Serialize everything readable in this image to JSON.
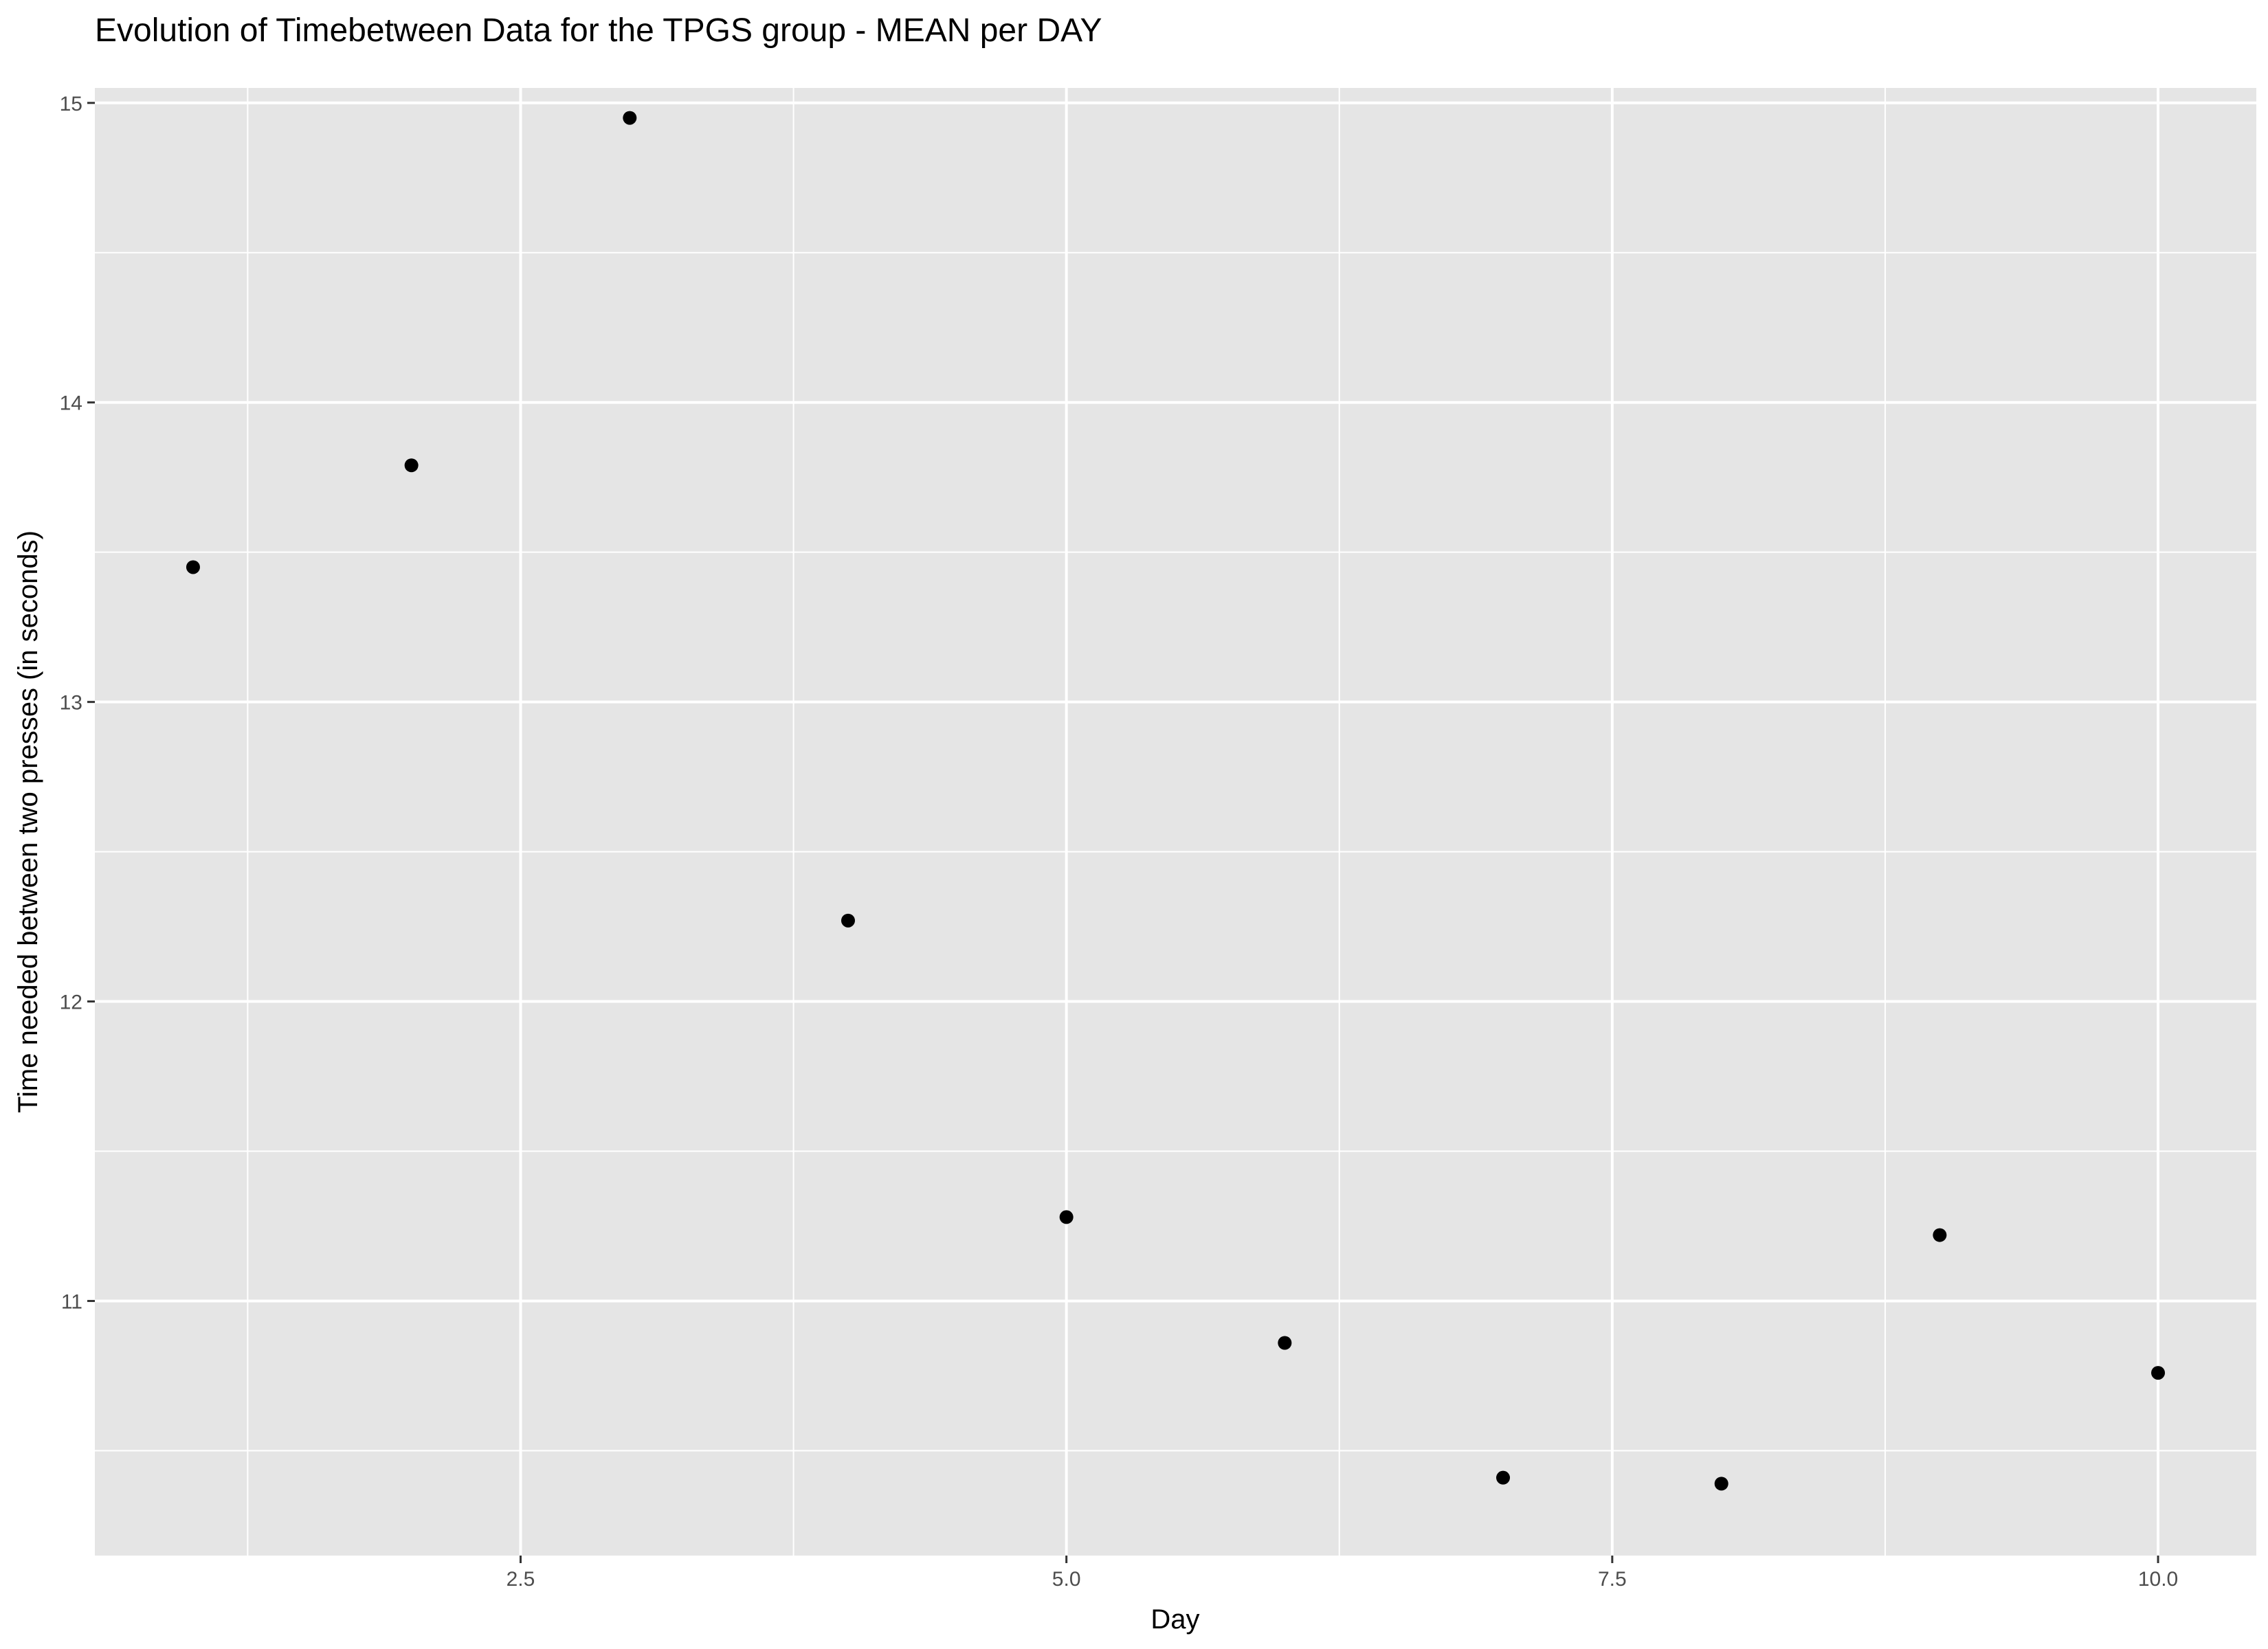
{
  "chart_data": {
    "type": "scatter",
    "title": "Evolution of Timebetween Data for the TPGS group - MEAN per DAY",
    "xlabel": "Day",
    "ylabel": "Time needed between two presses (in seconds)",
    "xlim": [
      0.55,
      10.45
    ],
    "ylim": [
      10.15,
      15.05
    ],
    "x_ticks": [
      2.5,
      5.0,
      7.5,
      10.0
    ],
    "x_tick_labels": [
      "2.5",
      "5.0",
      "7.5",
      "10.0"
    ],
    "y_ticks": [
      11,
      12,
      13,
      14,
      15
    ],
    "y_tick_labels": [
      "11",
      "12",
      "13",
      "14",
      "15"
    ],
    "grid": true,
    "colors": {
      "panel": "#e5e5e5",
      "grid": "#ffffff",
      "point": "#000000"
    },
    "points": [
      {
        "x": 1,
        "y": 13.45
      },
      {
        "x": 2,
        "y": 13.79
      },
      {
        "x": 3,
        "y": 14.95
      },
      {
        "x": 4,
        "y": 12.27
      },
      {
        "x": 5,
        "y": 11.28
      },
      {
        "x": 6,
        "y": 10.86
      },
      {
        "x": 7,
        "y": 10.41
      },
      {
        "x": 8,
        "y": 10.39
      },
      {
        "x": 9,
        "y": 11.22
      },
      {
        "x": 10,
        "y": 10.76
      }
    ]
  }
}
